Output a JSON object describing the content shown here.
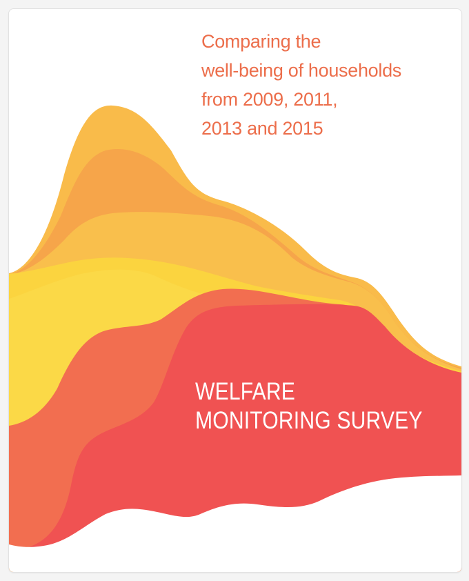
{
  "cover": {
    "subtitle_lines": [
      "Comparing the",
      "well-being of households",
      "from 2009, 2011,",
      "2013 and 2015"
    ],
    "title_lines": [
      "WELFARE",
      "MONITORING SURVEY"
    ]
  },
  "colors": {
    "subtitle": "#ec6e4b",
    "title": "#ffffff",
    "wave_gold": "#f9bb4a",
    "wave_amber": "#f6a54a",
    "wave_yellow": "#fbd43f",
    "wave_coral": "#f26e50",
    "wave_red": "#f05252"
  }
}
